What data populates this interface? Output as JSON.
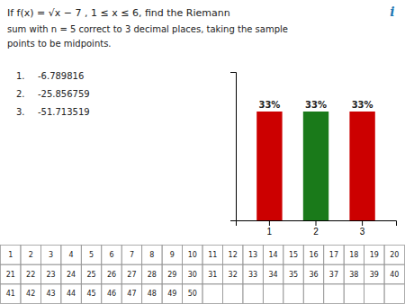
{
  "chart_data": {
    "type": "bar",
    "categories": [
      "1",
      "2",
      "3"
    ],
    "values": [
      33,
      33,
      33
    ],
    "value_labels": [
      "33%",
      "33%",
      "33%"
    ],
    "colors": [
      "#CC0000",
      "#1a7a1a",
      "#CC0000"
    ],
    "data_labels": true,
    "ylim": [
      0,
      45
    ],
    "tick_labels": "x",
    "annotations": [
      "If  f(x) = √x − 7 , 1 ≤ x ≤ 6,  find the Riemann",
      "sum with n = 5 correct to 3 decimal places, taking the sample",
      "points to be midpoints.",
      "i"
    ],
    "answers": [
      {
        "num": "1.",
        "val": "-6.789816"
      },
      {
        "num": "2.",
        "val": "-25.856759"
      },
      {
        "num": "3.",
        "val": "-51.713519"
      }
    ],
    "table": [
      [
        1,
        2,
        3,
        4,
        5,
        6,
        7,
        8,
        9,
        10,
        11,
        12,
        13,
        14,
        15,
        16,
        17,
        18,
        19,
        20
      ],
      [
        21,
        22,
        23,
        24,
        25,
        26,
        27,
        28,
        29,
        30,
        31,
        32,
        33,
        34,
        35,
        36,
        37,
        38,
        39,
        40
      ],
      [
        41,
        42,
        43,
        44,
        45,
        46,
        47,
        48,
        49,
        50
      ]
    ]
  }
}
